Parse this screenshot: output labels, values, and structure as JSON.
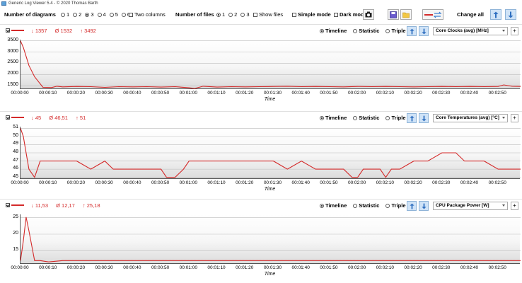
{
  "window": {
    "title": "Generic Log Viewer 5.4 - © 2020 Thomas Barth"
  },
  "toolbar": {
    "diagrams_label": "Number of diagrams",
    "diagram_options": [
      "1",
      "2",
      "3",
      "4",
      "5",
      "6"
    ],
    "diagrams_selected": "3",
    "two_columns_label": "Two columns",
    "files_label": "Number of files",
    "file_options": [
      "1",
      "2",
      "3"
    ],
    "files_selected": "1",
    "show_files_label": "Show files",
    "simple_mode_label": "Simple mode",
    "dark_mode_label": "Dark mod",
    "change_all_label": "Change all"
  },
  "time_labels": [
    "00:00:00",
    "00:00:10",
    "00:00:20",
    "00:00:30",
    "00:00:40",
    "00:00:50",
    "00:01:00",
    "00:01:10",
    "00:01:20",
    "00:01:30",
    "00:01:40",
    "00:01:50",
    "00:02:00",
    "00:02:10",
    "00:02:20",
    "00:02:30",
    "00:02:40",
    "00:02:50"
  ],
  "x_axis_label": "Time",
  "mode_labels": {
    "timeline": "Timeline",
    "statistic": "Statistic",
    "triple": "Triple"
  },
  "colors": {
    "series": "#d42a2a",
    "accent_blue": "#3a7fd0"
  },
  "panels": [
    {
      "stats": {
        "min": "↓ 1357",
        "avg": "Ø 1532",
        "max": "↑ 3492"
      },
      "sensor": "Core Clocks (avg) [MHz]"
    },
    {
      "stats": {
        "min": "↓ 45",
        "avg": "Ø 46,51",
        "max": "↑ 51"
      },
      "sensor": "Core Temperatures (avg) [°C]"
    },
    {
      "stats": {
        "min": "↓ 11,53",
        "avg": "Ø 12,17",
        "max": "↑ 25,18"
      },
      "sensor": "CPU Package Power [W]"
    }
  ],
  "chart_data": [
    {
      "type": "line",
      "ylabel": "",
      "xlabel": "Time",
      "yticks": [
        "3500",
        "3000",
        "2500",
        "2000",
        "1500"
      ],
      "ylim": [
        1350,
        3550
      ],
      "x_seconds": [
        0,
        1,
        3,
        5,
        8,
        11,
        13,
        15,
        20,
        25,
        30,
        35,
        40,
        45,
        50,
        55,
        60,
        62,
        65,
        70,
        75,
        80,
        85,
        90,
        95,
        100,
        105,
        110,
        115,
        120,
        125,
        130,
        135,
        140,
        145,
        150,
        155,
        160,
        165,
        170,
        172,
        175,
        178
      ],
      "values": [
        3492,
        3200,
        2400,
        1900,
        1430,
        1420,
        1480,
        1450,
        1470,
        1460,
        1430,
        1460,
        1450,
        1460,
        1440,
        1460,
        1410,
        1380,
        1480,
        1440,
        1460,
        1450,
        1460,
        1470,
        1480,
        1460,
        1470,
        1460,
        1450,
        1470,
        1460,
        1470,
        1460,
        1450,
        1460,
        1470,
        1460,
        1470,
        1460,
        1470,
        1540,
        1480,
        1470
      ],
      "series": [
        {
          "values_ref": "values"
        }
      ]
    },
    {
      "type": "line",
      "ylabel": "",
      "xlabel": "Time",
      "yticks": [
        "51",
        "50",
        "49",
        "48",
        "47",
        "46",
        "45"
      ],
      "ylim": [
        44.8,
        51.2
      ],
      "x_seconds": [
        0,
        1,
        2,
        3,
        5,
        7,
        10,
        12,
        15,
        20,
        25,
        30,
        33,
        35,
        40,
        45,
        50,
        52,
        55,
        58,
        60,
        62,
        65,
        70,
        75,
        80,
        85,
        90,
        95,
        100,
        105,
        110,
        112,
        115,
        118,
        120,
        122,
        125,
        128,
        130,
        132,
        135,
        140,
        145,
        150,
        155,
        158,
        160,
        165,
        170,
        175,
        178
      ],
      "values": [
        51,
        50,
        48,
        46,
        45,
        47,
        47,
        47,
        47,
        47,
        46,
        47,
        46,
        46,
        46,
        46,
        46,
        45,
        45,
        46,
        47,
        47,
        47,
        47,
        47,
        47,
        47,
        47,
        46,
        47,
        46,
        46,
        46,
        46,
        45,
        45,
        46,
        46,
        46,
        45,
        46,
        46,
        47,
        47,
        48,
        48,
        47,
        47,
        47,
        46,
        46,
        46
      ],
      "series": [
        {
          "values_ref": "values"
        }
      ]
    },
    {
      "type": "line",
      "ylabel": "",
      "xlabel": "Time",
      "yticks": [
        "25",
        "20",
        "15"
      ],
      "ylim": [
        11,
        26
      ],
      "x_seconds": [
        0,
        1,
        2,
        3,
        5,
        7,
        10,
        15,
        20,
        30,
        40,
        50,
        60,
        70,
        80,
        90,
        100,
        110,
        120,
        130,
        140,
        150,
        160,
        170,
        178
      ],
      "values": [
        12,
        18,
        25.18,
        21,
        12,
        12,
        11.6,
        12,
        12,
        12,
        12,
        12,
        12,
        12,
        12,
        12,
        12,
        12,
        12,
        12,
        12,
        12,
        12,
        12,
        12
      ],
      "series": [
        {
          "values_ref": "values"
        }
      ]
    }
  ]
}
